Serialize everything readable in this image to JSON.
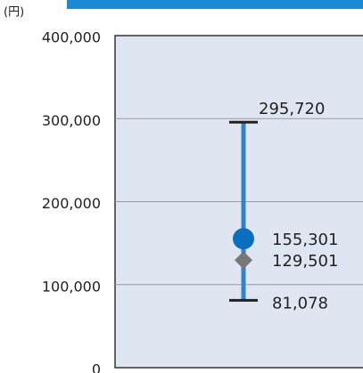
{
  "chart_data": {
    "type": "range",
    "unit": "(円)",
    "values": [
      295720,
      155301,
      129501,
      81078
    ],
    "value_labels": [
      "295,720",
      "155,301",
      "129,501",
      "81,078"
    ],
    "colors": [
      "#222222",
      "#0a6fbf",
      "#777777",
      "#222222"
    ],
    "range_color": "#2e86c8",
    "ylim": [
      0,
      400000
    ],
    "yticks": [
      0,
      {
        "value": 100000,
        "label": "100,000"
      },
      {
        "value": 200000,
        "label": "200,000"
      },
      {
        "value": 300000,
        "label": "300,000"
      },
      {
        "value": 400000,
        "label": "400,000"
      }
    ],
    "grid": true
  }
}
